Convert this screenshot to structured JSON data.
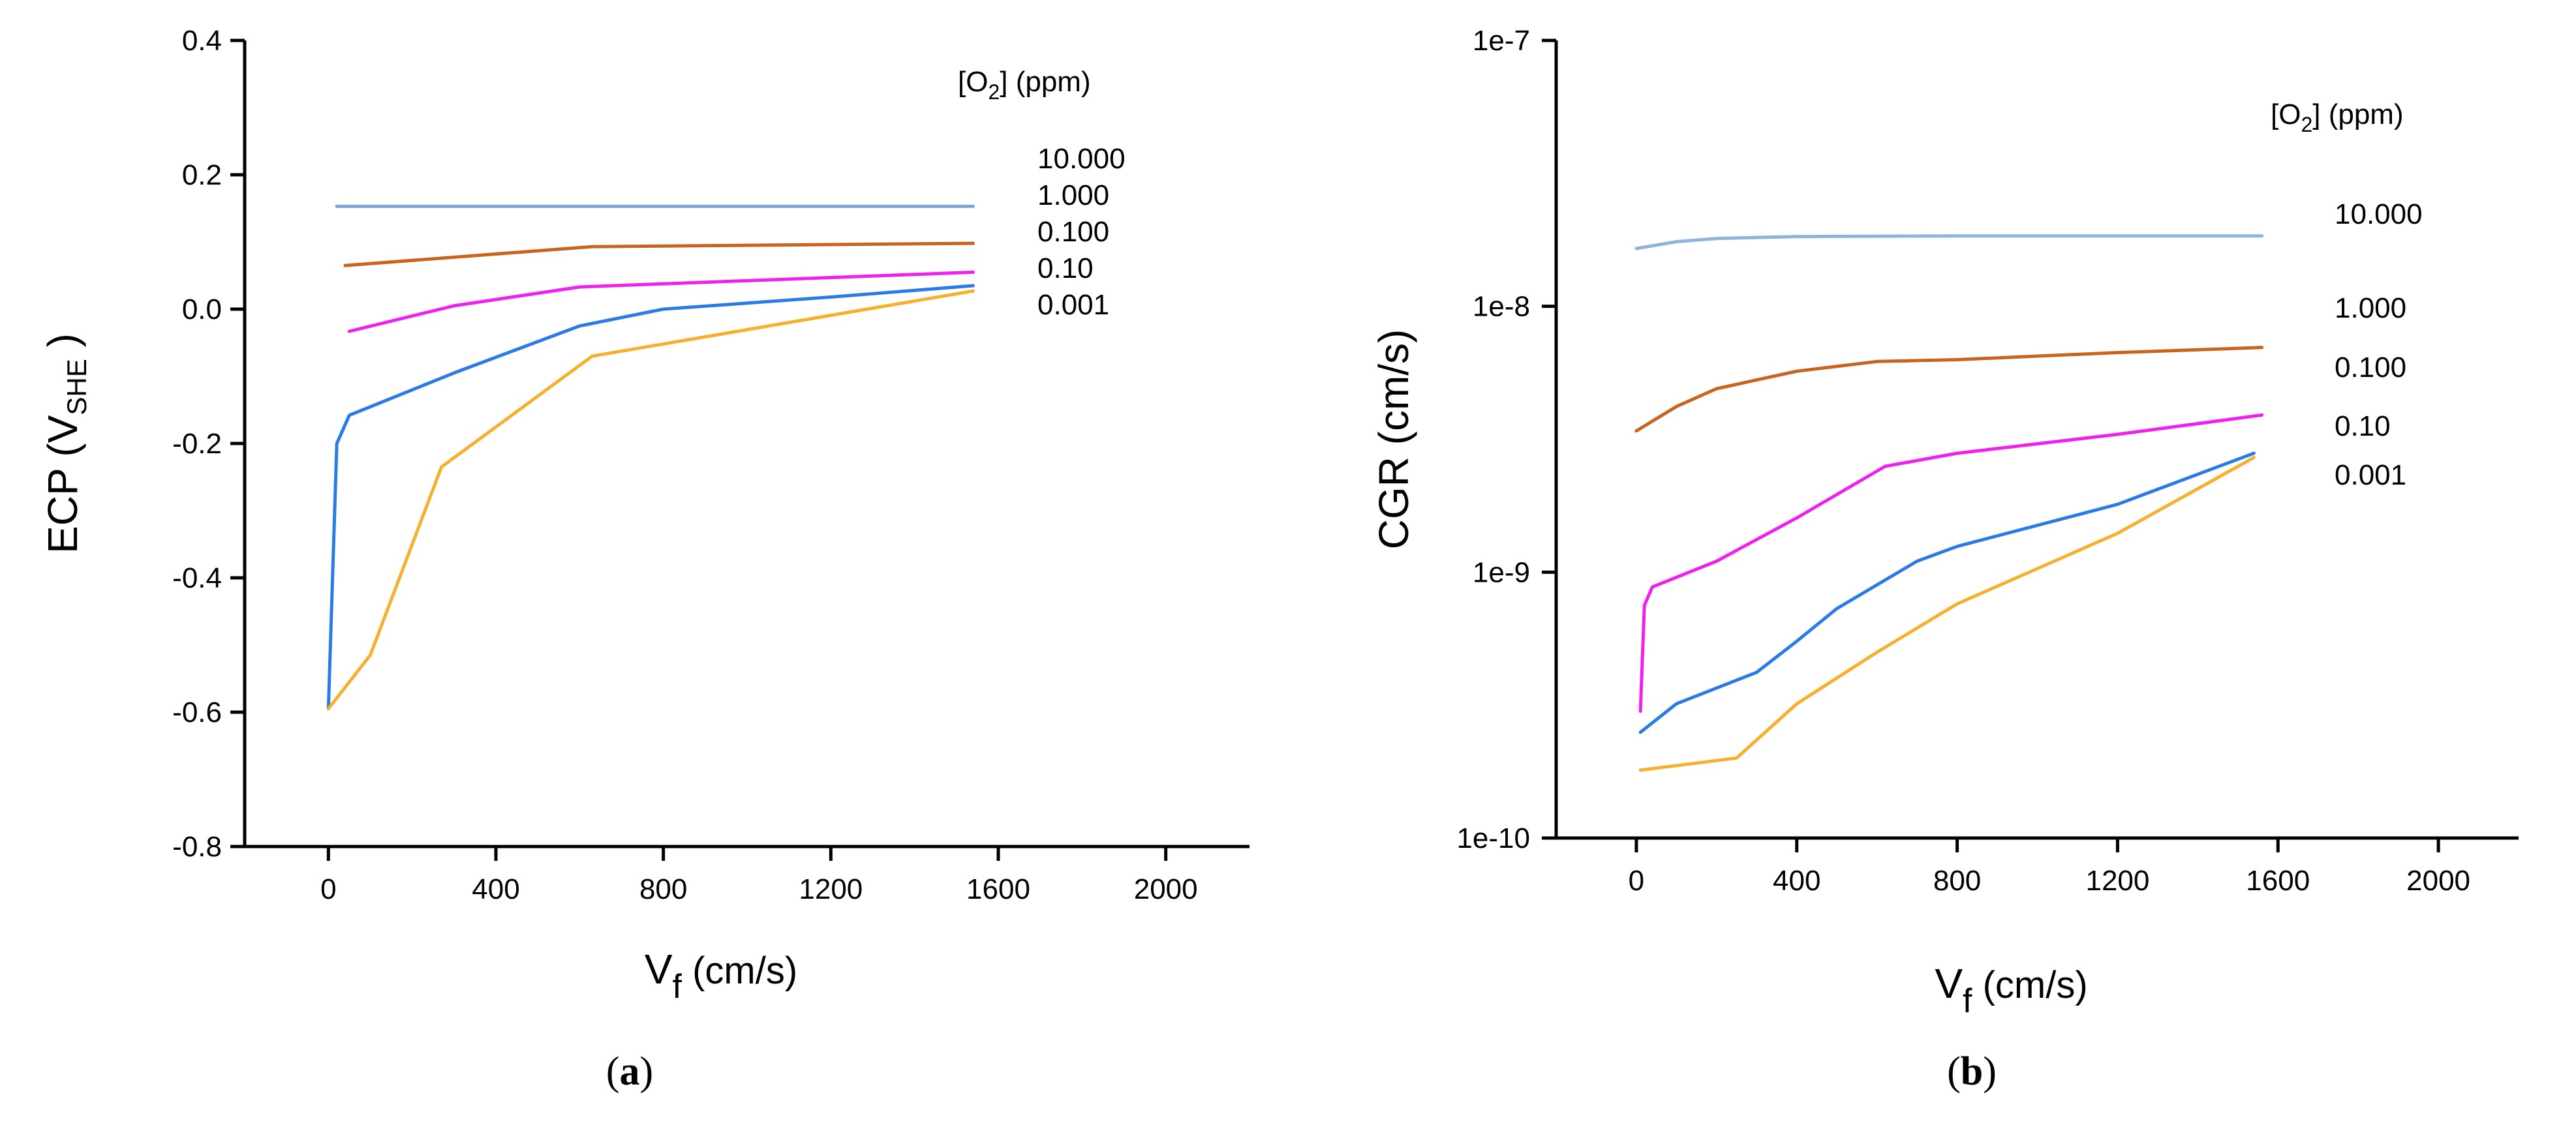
{
  "chart_data": [
    {
      "type": "line",
      "panel_label": "a",
      "xlabel": "V",
      "xlabel_sub": "f",
      "xlabel_unit": " (cm/s)",
      "ylabel": "ECP (V",
      "ylabel_sub": "SHE",
      "ylabel_end": " )",
      "xlim": [
        -200,
        2200
      ],
      "ylim": [
        -0.8,
        0.4
      ],
      "yscale": "linear",
      "x_ticks": [
        "0",
        "400",
        "800",
        "1200",
        "1600",
        "2000"
      ],
      "x_tick_values": [
        0,
        400,
        800,
        1200,
        1600,
        2000
      ],
      "y_ticks": [
        "-0.8",
        "-0.6",
        "-0.4",
        "-0.2",
        "0.0",
        "0.2",
        "0.4"
      ],
      "y_tick_values": [
        -0.8,
        -0.6,
        -0.4,
        -0.2,
        0.0,
        0.2,
        0.4
      ],
      "legend_title": "[O",
      "legend_title_sub": "2",
      "legend_title_end": "] (ppm)",
      "legend_placement": "top-right",
      "series": [
        {
          "name": "10.000",
          "color": "#7aa6d6",
          "x": [
            20,
            1540
          ],
          "y": [
            0.153,
            0.153
          ]
        },
        {
          "name": "1.000",
          "color": "#c8641e",
          "x": [
            40,
            630,
            1540
          ],
          "y": [
            0.065,
            0.093,
            0.098
          ]
        },
        {
          "name": "0.100",
          "color": "#ee22ee",
          "x": [
            50,
            300,
            600,
            1540
          ],
          "y": [
            -0.033,
            0.005,
            0.033,
            0.055
          ]
        },
        {
          "name": "0.10",
          "color": "#2a7be6",
          "x": [
            0,
            20,
            50,
            300,
            600,
            800,
            1200,
            1540
          ],
          "y": [
            -0.595,
            -0.2,
            -0.158,
            -0.095,
            -0.025,
            0.0,
            0.018,
            0.035
          ]
        },
        {
          "name": "0.001",
          "color": "#f5b030",
          "x": [
            0,
            100,
            270,
            630,
            1540
          ],
          "y": [
            -0.595,
            -0.515,
            -0.235,
            -0.07,
            0.027
          ]
        }
      ]
    },
    {
      "type": "line",
      "panel_label": "b",
      "xlabel": "V",
      "xlabel_sub": "f",
      "xlabel_unit": " (cm/s)",
      "ylabel": "CGR (cm/s)",
      "xlim": [
        -200,
        2200
      ],
      "ylim": [
        1e-10,
        1e-07
      ],
      "yscale": "log",
      "x_ticks": [
        "0",
        "400",
        "800",
        "1200",
        "1600",
        "2000"
      ],
      "x_tick_values": [
        0,
        400,
        800,
        1200,
        1600,
        2000
      ],
      "y_ticks": [
        "1e-10",
        "1e-9",
        "1e-8",
        "1e-7"
      ],
      "y_tick_values": [
        1e-10,
        1e-09,
        1e-08,
        1e-07
      ],
      "legend_title": "[O",
      "legend_title_sub": "2",
      "legend_title_end": "] (ppm)",
      "legend_placement": "top-right",
      "series": [
        {
          "name": "10.000",
          "color": "#8fb3dc",
          "x": [
            0,
            100,
            200,
            400,
            800,
            1200,
            1560
          ],
          "y": [
            1.65e-08,
            1.75e-08,
            1.8e-08,
            1.83e-08,
            1.84e-08,
            1.84e-08,
            1.84e-08
          ]
        },
        {
          "name": "1.000",
          "color": "#c8641e",
          "x": [
            0,
            100,
            200,
            400,
            600,
            800,
            1200,
            1560
          ],
          "y": [
            3.4e-09,
            4.2e-09,
            4.9e-09,
            5.7e-09,
            6.2e-09,
            6.3e-09,
            6.7e-09,
            7e-09
          ]
        },
        {
          "name": "0.100",
          "color": "#ee22ee",
          "x": [
            10,
            20,
            40,
            200,
            400,
            620,
            800,
            1200,
            1560
          ],
          "y": [
            3e-10,
            7.5e-10,
            8.8e-10,
            1.1e-09,
            1.6e-09,
            2.5e-09,
            2.8e-09,
            3.3e-09,
            3.9e-09
          ]
        },
        {
          "name": "0.10",
          "color": "#2a7be6",
          "x": [
            10,
            100,
            300,
            400,
            500,
            700,
            800,
            1200,
            1540
          ],
          "y": [
            2.5e-10,
            3.2e-10,
            4.2e-10,
            5.5e-10,
            7.3e-10,
            1.1e-09,
            1.25e-09,
            1.8e-09,
            2.8e-09
          ]
        },
        {
          "name": "0.001",
          "color": "#f5b030",
          "x": [
            10,
            250,
            400,
            600,
            800,
            1200,
            1540
          ],
          "y": [
            1.8e-10,
            2e-10,
            3.2e-10,
            5e-10,
            7.6e-10,
            1.4e-09,
            2.7e-09
          ]
        }
      ]
    }
  ]
}
